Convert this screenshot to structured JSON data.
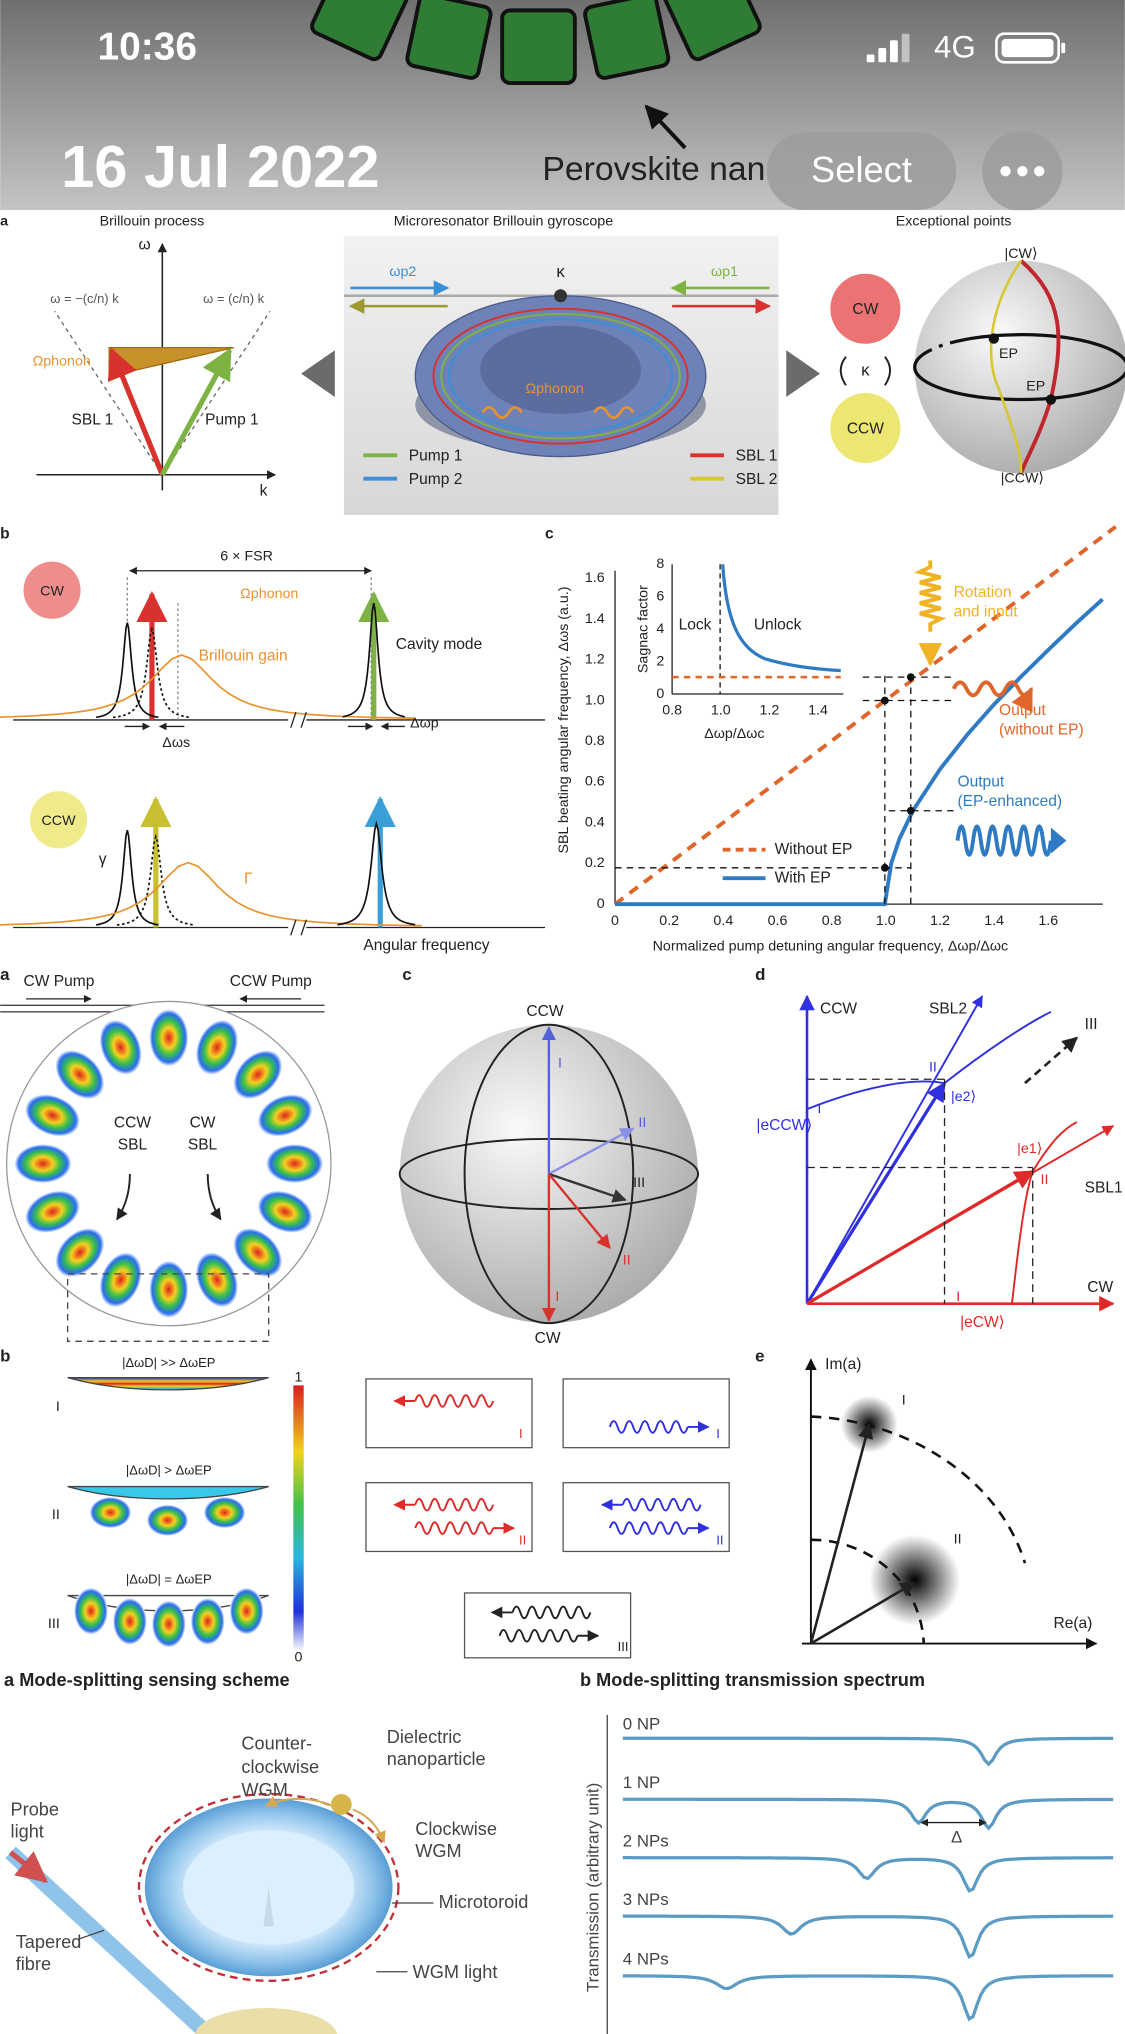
{
  "status_bar": {
    "time": "10:36",
    "network": "4G"
  },
  "header": {
    "date": "16 Jul 2022",
    "select_button": "Select",
    "photo_caption_fragment": "Perovskite nan"
  },
  "figure_1": {
    "panel": "a",
    "titles": [
      "Brillouin process",
      "Microresonator Brillouin gyroscope",
      "Exceptional points"
    ],
    "dispersion": {
      "y_axis": "ω",
      "x_axis": "k",
      "left_line": "ω = −(c/n) k",
      "right_line": "ω = (c/n) k",
      "phonon": "Ωphonon",
      "sbl": "SBL 1",
      "pump": "Pump 1"
    },
    "resonator": {
      "pump_2_freq": "ωp2",
      "pump_1_freq": "ωp1",
      "loss": "κ",
      "phonon": "Ωphonon"
    },
    "legend": [
      "Pump 1",
      "Pump 2",
      "SBL 1",
      "SBL 2"
    ],
    "exceptional": {
      "cw": "CW",
      "coupling": "κ",
      "ccw": "CCW",
      "north": "|CW⟩",
      "ep_1": "EP",
      "ep_2": "EP",
      "south": "|CCW⟩"
    }
  },
  "figure_2": {
    "panel_b": {
      "label": "b",
      "cw": "CW",
      "fsr": "6 × FSR",
      "phonon": "Ωphonon",
      "gain": "Brillouin gain",
      "cavity": "Cavity mode",
      "delta_s": "Δωs",
      "delta_p": "Δωp",
      "ccw": "CCW",
      "gamma": "γ",
      "big_gamma": "Γ",
      "x_axis": "Angular frequency"
    },
    "panel_c": {
      "label": "c",
      "y_axis": "SBL beating angular frequency, Δωs (a.u.)",
      "x_axis": "Normalized pump detuning angular frequency, Δωp/Δωc",
      "yticks": [
        "0",
        "0.2",
        "0.4",
        "0.6",
        "0.8",
        "1.0",
        "1.2",
        "1.4",
        "1.6"
      ],
      "xticks": [
        "0",
        "0.2",
        "0.4",
        "0.6",
        "0.8",
        "1.0",
        "1.2",
        "1.4",
        "1.6"
      ],
      "inset": {
        "y_axis": "Sagnac factor",
        "yticks": [
          "0",
          "2",
          "4",
          "6",
          "8"
        ],
        "xticks": [
          "0.8",
          "1.0",
          "1.2",
          "1.4"
        ],
        "x_axis": "Δωp/Δωc",
        "lock": "Lock",
        "unlock": "Unlock"
      },
      "legend": [
        "Without EP",
        "With EP"
      ],
      "rotation": [
        "Rotation",
        "and input"
      ],
      "output_without": [
        "Output",
        "(without EP)"
      ],
      "output_with": [
        "Output",
        "(EP-enhanced)"
      ]
    }
  },
  "figure_3": {
    "panel_a": {
      "label": "a",
      "cw_pump": "CW Pump",
      "ccw_pump": "CCW Pump",
      "ccw_sbl": [
        "CCW",
        "SBL"
      ],
      "cw_sbl": [
        "CW",
        "SBL"
      ]
    },
    "panel_b": {
      "label": "b",
      "rows": [
        "|ΔωD| >> ΔωEP",
        "|ΔωD| > ΔωEP",
        "|ΔωD| = ΔωEP"
      ],
      "row_labels": [
        "I",
        "II",
        "III"
      ],
      "colorbar": [
        "1",
        "0"
      ],
      "wave_labels": [
        "I",
        "I",
        "II",
        "II",
        "III"
      ]
    },
    "panel_c": {
      "label": "c",
      "north": "CCW",
      "south": "CW",
      "vectors": [
        "I",
        "II",
        "III",
        "II",
        "I"
      ]
    },
    "panel_d": {
      "label": "d",
      "y_axis": "CCW",
      "x_axis": "CW",
      "sbl2": "SBL2",
      "sbl1": "SBL1",
      "direction": "III",
      "e_ccw": "|eCCW⟩",
      "e_cw": "|eCW⟩",
      "e2": "|e2⟩",
      "e1": "|e1⟩",
      "marks": [
        "II",
        "I",
        "II",
        "I"
      ]
    },
    "panel_e": {
      "label": "e",
      "y_axis": "Im(a)",
      "x_axis": "Re(a)",
      "points": [
        "I",
        "II"
      ]
    }
  },
  "figure_4": {
    "panel_a": {
      "title": "a  Mode-splitting sensing scheme",
      "particle": [
        "Dielectric",
        "nanoparticle"
      ],
      "ccw": [
        "Counter-",
        "clockwise",
        "WGM"
      ],
      "probe": [
        "Probe",
        "light"
      ],
      "cw": [
        "Clockwise",
        "WGM"
      ],
      "toroid": "Microtoroid",
      "fibre": [
        "Tapered",
        "fibre"
      ],
      "light": "WGM light"
    },
    "panel_b": {
      "title": "b  Mode-splitting transmission spectrum",
      "y_axis": "Transmission (arbitrary unit)",
      "traces": [
        "0 NP",
        "1 NP",
        "2 NPs",
        "3 NPs",
        "4 NPs"
      ],
      "splitting": "Δ"
    }
  }
}
